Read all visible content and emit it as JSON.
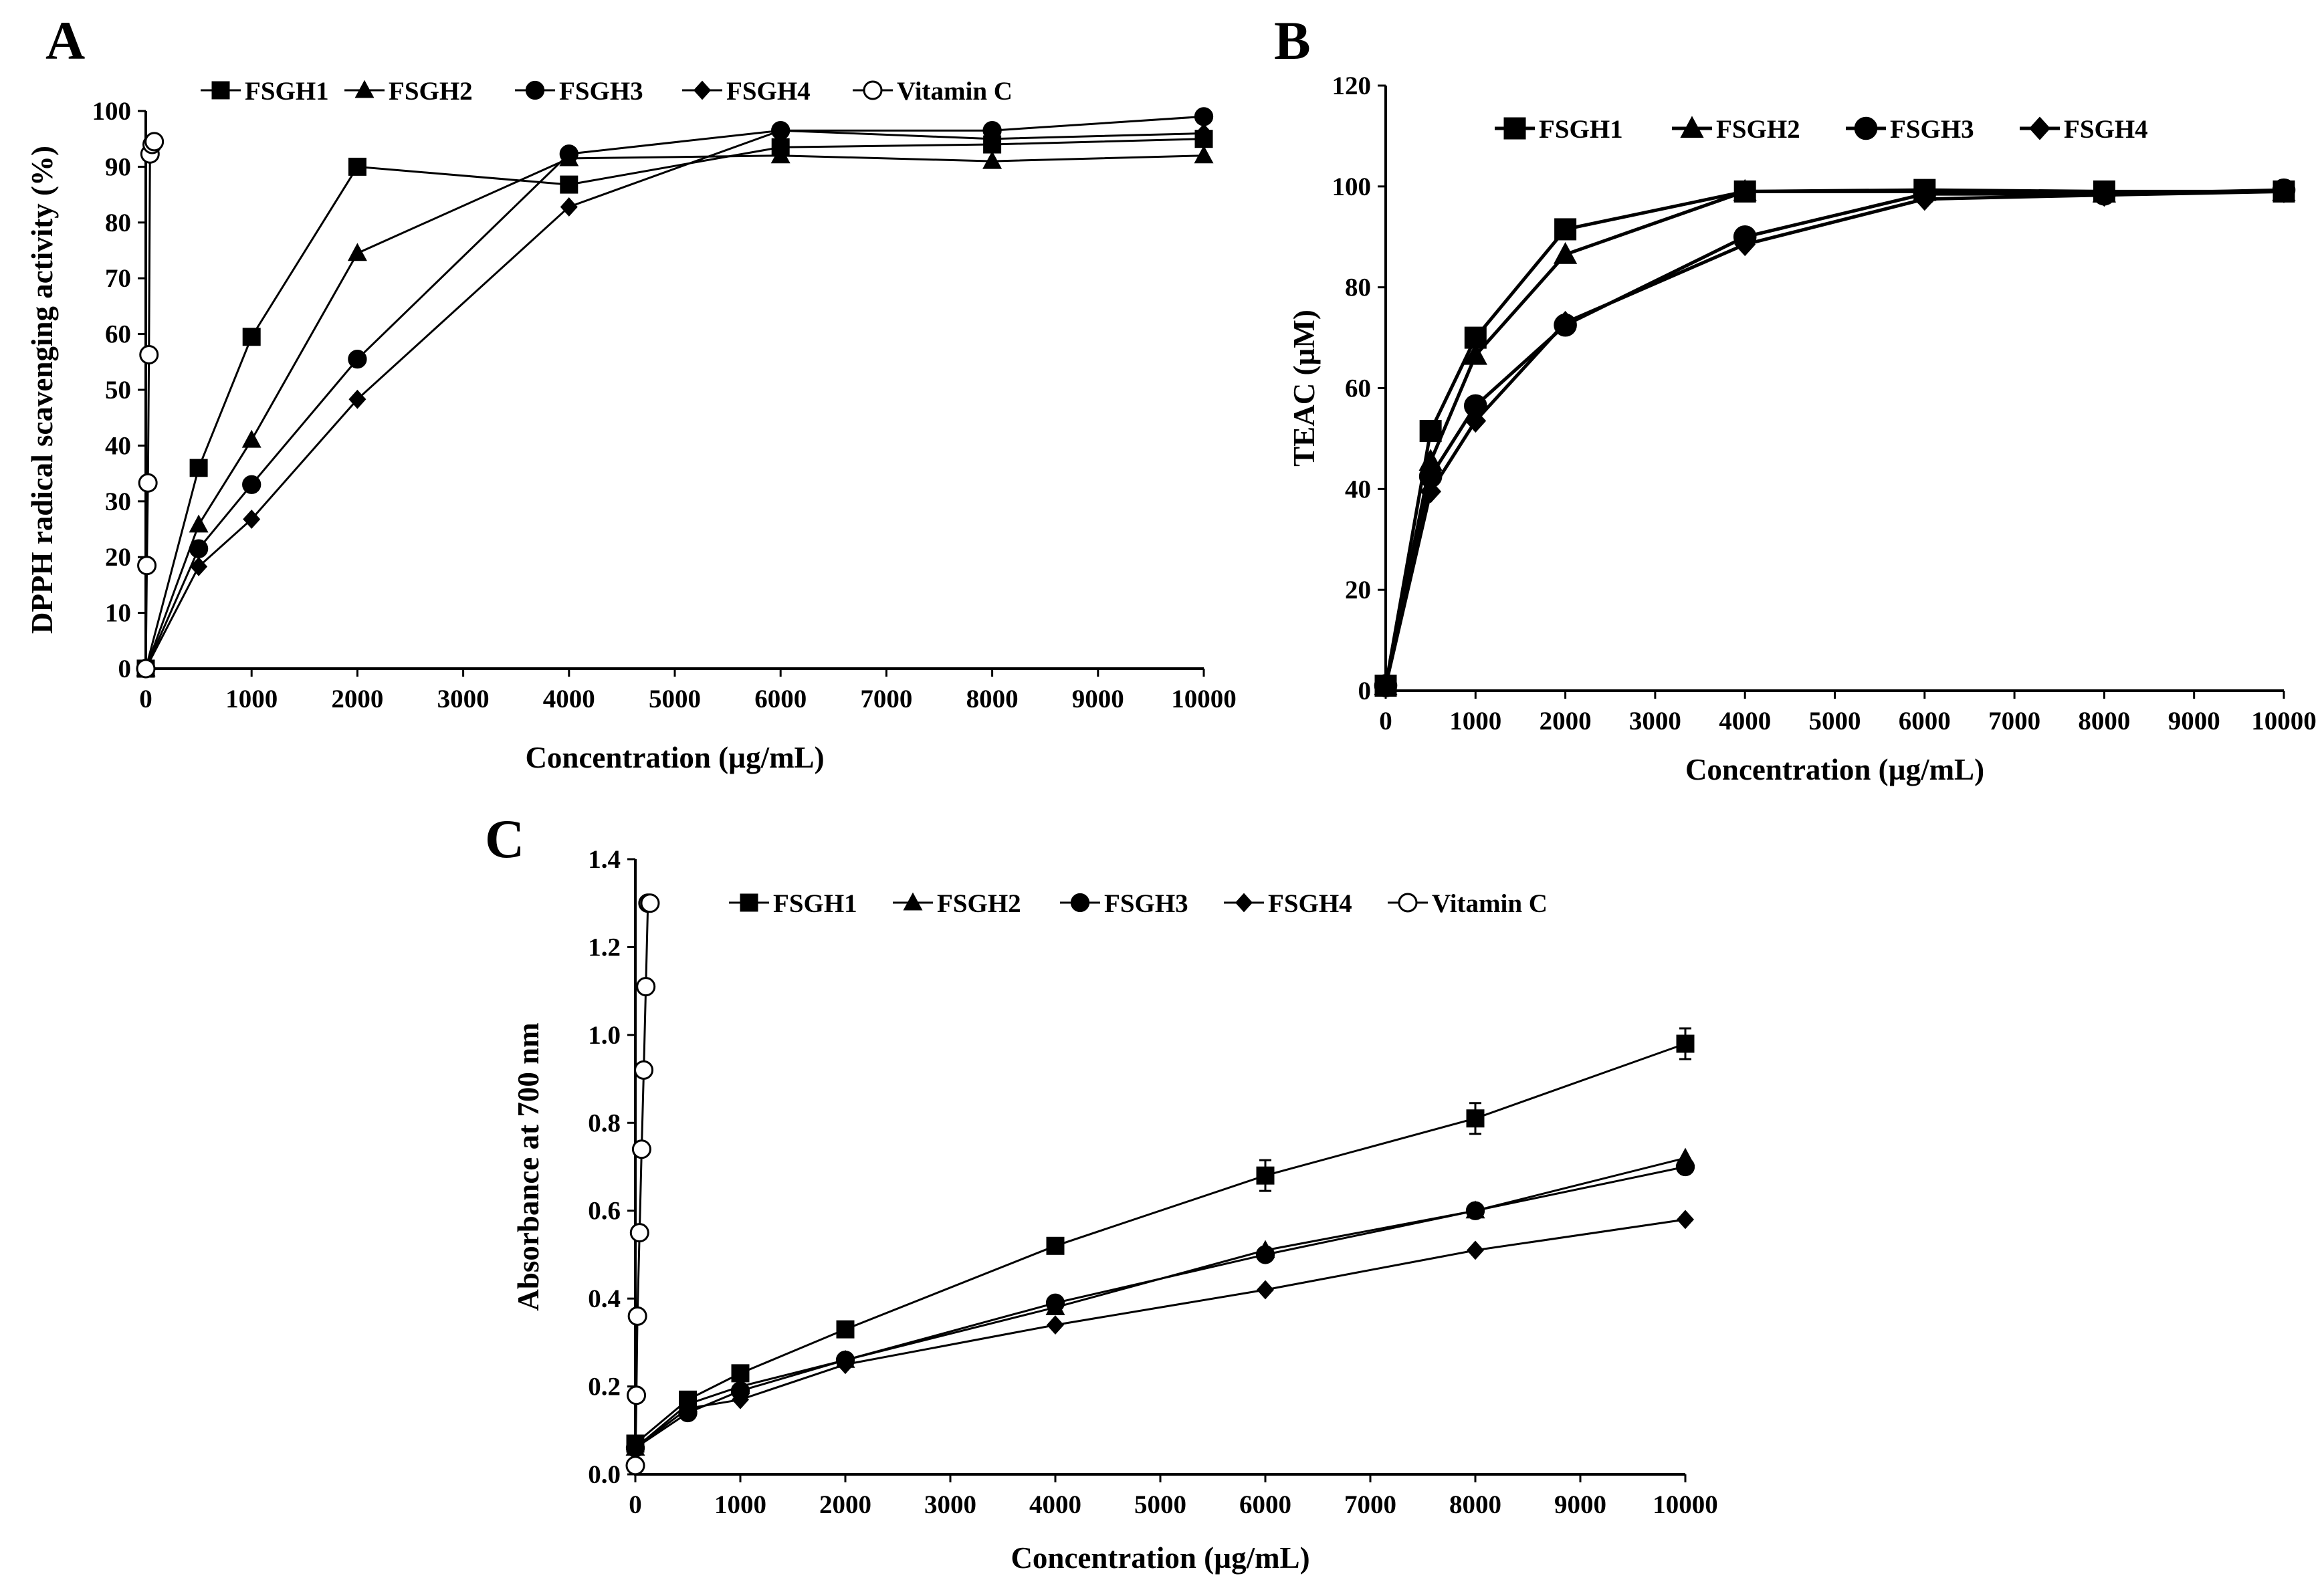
{
  "chart_data": [
    {
      "panel": "A",
      "type": "line",
      "title": "",
      "xlabel": "Concentration (µg/mL)",
      "ylabel": "DPPH radical scavenging activity (%)",
      "xlim": [
        0,
        10000
      ],
      "ylim": [
        0,
        100
      ],
      "xticks": [
        0,
        1000,
        2000,
        3000,
        4000,
        5000,
        6000,
        7000,
        8000,
        9000,
        10000
      ],
      "yticks": [
        0,
        10,
        20,
        30,
        40,
        50,
        60,
        70,
        80,
        90,
        100
      ],
      "grid": false,
      "legend_position": "top",
      "series": [
        {
          "name": "FSGH1",
          "marker": "square",
          "x": [
            0,
            500,
            1000,
            2000,
            4000,
            6000,
            8000,
            10000
          ],
          "y": [
            0,
            36,
            59.5,
            90,
            86.8,
            93.5,
            94,
            95
          ]
        },
        {
          "name": "FSGH2",
          "marker": "triangle",
          "x": [
            0,
            500,
            1000,
            2000,
            4000,
            6000,
            8000,
            10000
          ],
          "y": [
            0,
            25.8,
            41,
            74.5,
            91.5,
            92,
            91,
            92
          ]
        },
        {
          "name": "FSGH3",
          "marker": "circle",
          "x": [
            0,
            500,
            1000,
            2000,
            4000,
            6000,
            8000,
            10000
          ],
          "y": [
            0,
            21.5,
            33,
            55.5,
            92.3,
            96.5,
            96.5,
            99
          ]
        },
        {
          "name": "FSGH4",
          "marker": "diamond",
          "x": [
            0,
            500,
            1000,
            2000,
            4000,
            6000,
            8000,
            10000
          ],
          "y": [
            0,
            18.3,
            26.8,
            48.3,
            82.8,
            96.5,
            95,
            96
          ]
        },
        {
          "name": "Vitamin C",
          "marker": "open-circle",
          "x": [
            0,
            10,
            20,
            30,
            40,
            60,
            80
          ],
          "y": [
            0,
            18.5,
            33.3,
            56.3,
            92.3,
            94,
            94.5
          ]
        }
      ]
    },
    {
      "panel": "B",
      "type": "line",
      "title": "",
      "xlabel": "Concentration (µg/mL)",
      "ylabel": "TEAC (µM)",
      "xlim": [
        0,
        10000
      ],
      "ylim": [
        0,
        120
      ],
      "xticks": [
        0,
        1000,
        2000,
        3000,
        4000,
        5000,
        6000,
        7000,
        8000,
        9000,
        10000
      ],
      "yticks": [
        0,
        20,
        40,
        60,
        80,
        100,
        120
      ],
      "grid": false,
      "legend_position": "top",
      "series": [
        {
          "name": "FSGH1",
          "marker": "square",
          "x": [
            0,
            500,
            1000,
            2000,
            4000,
            6000,
            8000,
            10000
          ],
          "y": [
            1,
            51.5,
            70,
            91.5,
            99,
            99.3,
            99,
            99
          ]
        },
        {
          "name": "FSGH2",
          "marker": "triangle",
          "x": [
            0,
            500,
            1000,
            2000,
            4000,
            6000,
            8000,
            10000
          ],
          "y": [
            1,
            45.5,
            66.5,
            86.5,
            99,
            99,
            98.7,
            99
          ]
        },
        {
          "name": "FSGH3",
          "marker": "circle",
          "x": [
            0,
            500,
            1000,
            2000,
            4000,
            6000,
            8000,
            10000
          ],
          "y": [
            1,
            42.5,
            56.5,
            72.5,
            90,
            98.5,
            98.5,
            99.3
          ]
        },
        {
          "name": "FSGH4",
          "marker": "diamond",
          "x": [
            0,
            500,
            1000,
            2000,
            4000,
            6000,
            8000,
            10000
          ],
          "y": [
            1,
            39.5,
            53.5,
            73,
            88.5,
            97.5,
            98.3,
            99
          ]
        }
      ]
    },
    {
      "panel": "C",
      "type": "line",
      "title": "",
      "xlabel": "Concentration (µg/mL)",
      "ylabel": "Absorbance at 700 nm",
      "xlim": [
        0,
        10000
      ],
      "ylim": [
        0,
        1.4
      ],
      "xticks": [
        0,
        1000,
        2000,
        3000,
        4000,
        5000,
        6000,
        7000,
        8000,
        9000,
        10000
      ],
      "yticks": [
        0.0,
        0.2,
        0.4,
        0.6,
        0.8,
        1.0,
        1.2,
        1.4
      ],
      "ytick_labels": [
        "0.0",
        "0.2",
        "0.4",
        "0.6",
        "0.8",
        "1.0",
        "1.2",
        "1.4"
      ],
      "grid": false,
      "legend_position": "top",
      "series": [
        {
          "name": "FSGH1",
          "marker": "square",
          "x": [
            0,
            500,
            1000,
            2000,
            4000,
            6000,
            8000,
            10000
          ],
          "y": [
            0.07,
            0.17,
            0.23,
            0.33,
            0.52,
            0.68,
            0.81,
            0.98
          ],
          "err": [
            0,
            0,
            0,
            0,
            0,
            0.035,
            0.035,
            0.035
          ]
        },
        {
          "name": "FSGH2",
          "marker": "triangle",
          "x": [
            0,
            500,
            1000,
            2000,
            4000,
            6000,
            8000,
            10000
          ],
          "y": [
            0.06,
            0.16,
            0.2,
            0.26,
            0.38,
            0.51,
            0.6,
            0.72
          ]
        },
        {
          "name": "FSGH3",
          "marker": "circle",
          "x": [
            0,
            500,
            1000,
            2000,
            4000,
            6000,
            8000,
            10000
          ],
          "y": [
            0.06,
            0.14,
            0.19,
            0.26,
            0.39,
            0.5,
            0.6,
            0.7
          ]
        },
        {
          "name": "FSGH4",
          "marker": "diamond",
          "x": [
            0,
            500,
            1000,
            2000,
            4000,
            6000,
            8000,
            10000
          ],
          "y": [
            0.06,
            0.15,
            0.17,
            0.25,
            0.34,
            0.42,
            0.51,
            0.58
          ]
        },
        {
          "name": "Vitamin C",
          "marker": "open-circle",
          "x": [
            0,
            10,
            20,
            40,
            60,
            80,
            100,
            120,
            140
          ],
          "y": [
            0.02,
            0.18,
            0.36,
            0.55,
            0.74,
            0.92,
            1.11,
            1.3,
            1.3
          ]
        }
      ]
    }
  ]
}
